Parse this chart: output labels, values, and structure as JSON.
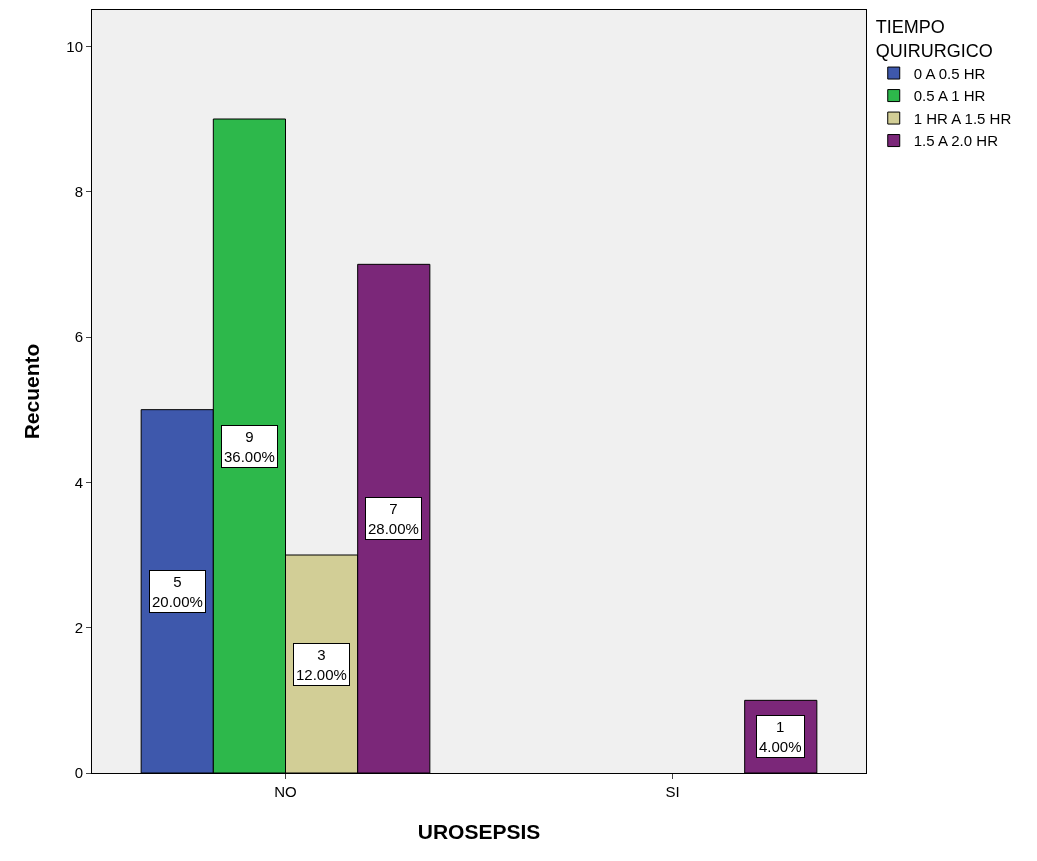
{
  "chart_data": {
    "type": "bar",
    "xlabel": "UROSEPSIS",
    "ylabel": "Recuento",
    "legend_title": "TIEMPO\nQUIRURGICO",
    "categories": [
      "NO",
      "SI"
    ],
    "series": [
      {
        "name": "0 A 0.5 HR",
        "color": "#3e58ac",
        "values": [
          5,
          null
        ],
        "value_labels": [
          "5\n20.00%",
          null
        ]
      },
      {
        "name": "0.5 A 1 HR",
        "color": "#2db84b",
        "values": [
          9,
          null
        ],
        "value_labels": [
          "9\n36.00%",
          null
        ]
      },
      {
        "name": "1 HR A 1.5 HR",
        "color": "#d2ce96",
        "values": [
          3,
          null
        ],
        "value_labels": [
          "3\n12.00%",
          null
        ]
      },
      {
        "name": "1.5 A 2.0 HR",
        "color": "#7b2779",
        "values": [
          7,
          1
        ],
        "value_labels": [
          "7\n28.00%",
          "1\n4.00%"
        ]
      }
    ],
    "ylim": [
      0,
      10.5
    ],
    "yticks": [
      0,
      2,
      4,
      6,
      8,
      10
    ],
    "grid": false,
    "legend": "top right"
  }
}
